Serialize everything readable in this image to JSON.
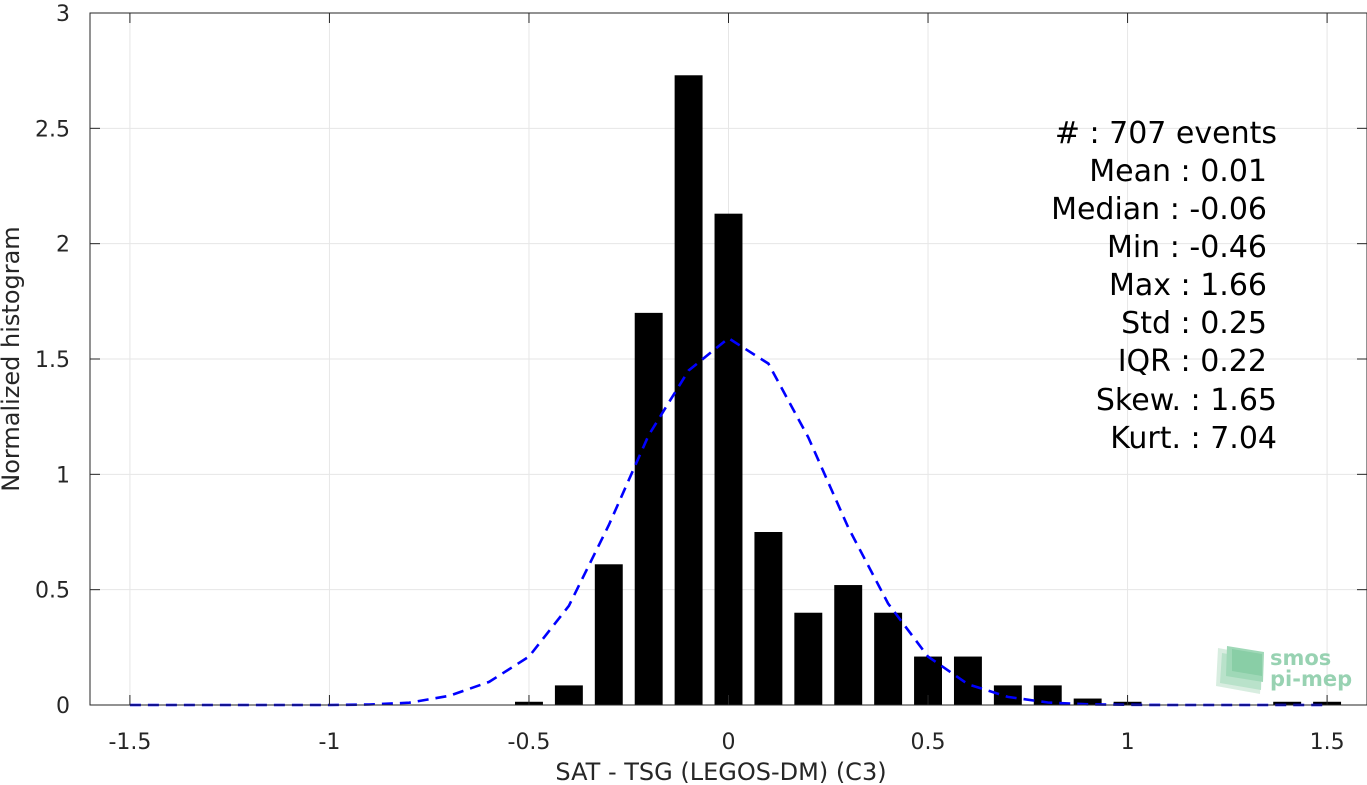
{
  "chart_data": {
    "type": "bar",
    "xlabel": "SAT - TSG (LEGOS-DM) (C3)",
    "ylabel": "Normalized histogram",
    "xlim": [
      -1.6,
      1.6
    ],
    "ylim": [
      0,
      3
    ],
    "grid": true,
    "x_ticks": [
      -1.5,
      -1,
      -0.5,
      0,
      0.5,
      1,
      1.5
    ],
    "x_tick_labels": [
      "-1.5",
      "-1",
      "-0.5",
      "0",
      "0.5",
      "1",
      "1.5"
    ],
    "y_ticks": [
      0,
      0.5,
      1,
      1.5,
      2,
      2.5,
      3
    ],
    "y_tick_labels": [
      "0",
      "0.5",
      "1",
      "1.5",
      "2",
      "2.5",
      "3"
    ],
    "bar_width": 0.07,
    "bar_color": "#000000",
    "bars": [
      {
        "x": -0.5,
        "value": 0.014
      },
      {
        "x": -0.4,
        "value": 0.085
      },
      {
        "x": -0.3,
        "value": 0.61
      },
      {
        "x": -0.2,
        "value": 1.7
      },
      {
        "x": -0.1,
        "value": 2.73
      },
      {
        "x": 0.0,
        "value": 2.13
      },
      {
        "x": 0.1,
        "value": 0.75
      },
      {
        "x": 0.2,
        "value": 0.4
      },
      {
        "x": 0.3,
        "value": 0.52
      },
      {
        "x": 0.4,
        "value": 0.4
      },
      {
        "x": 0.5,
        "value": 0.21
      },
      {
        "x": 0.6,
        "value": 0.21
      },
      {
        "x": 0.7,
        "value": 0.085
      },
      {
        "x": 0.8,
        "value": 0.085
      },
      {
        "x": 0.9,
        "value": 0.028
      },
      {
        "x": 1.0,
        "value": 0.014
      },
      {
        "x": 1.4,
        "value": 0.014
      },
      {
        "x": 1.5,
        "value": 0.014
      }
    ],
    "fit_curve": {
      "style": "dashed",
      "color": "#0000ff",
      "x": [
        -1.5,
        -1.4,
        -1.3,
        -1.2,
        -1.1,
        -1.0,
        -0.9,
        -0.8,
        -0.7,
        -0.6,
        -0.5,
        -0.4,
        -0.3,
        -0.2,
        -0.1,
        0.0,
        0.1,
        0.2,
        0.3,
        0.4,
        0.5,
        0.6,
        0.7,
        0.8,
        0.9,
        1.0,
        1.1,
        1.2,
        1.3,
        1.4,
        1.5
      ],
      "y": [
        0.0,
        0.0,
        0.0,
        0.0,
        0.0,
        0.0,
        0.002,
        0.01,
        0.04,
        0.1,
        0.21,
        0.43,
        0.78,
        1.17,
        1.45,
        1.59,
        1.48,
        1.16,
        0.77,
        0.44,
        0.21,
        0.09,
        0.035,
        0.011,
        0.003,
        0.001,
        0.0,
        0.0,
        0.0,
        0.0,
        0.0
      ]
    },
    "annotations": [
      "#  : 707 events",
      "Mean : 0.01",
      "Median : -0.06",
      "Min : -0.46",
      "Max : 1.66",
      "Std : 0.25",
      "IQR : 0.22",
      "Skew. : 1.65",
      "Kurt. : 7.04"
    ]
  },
  "logo": {
    "line1": "smos",
    "line2": "pi-mep",
    "color": "#7fc8a0"
  }
}
